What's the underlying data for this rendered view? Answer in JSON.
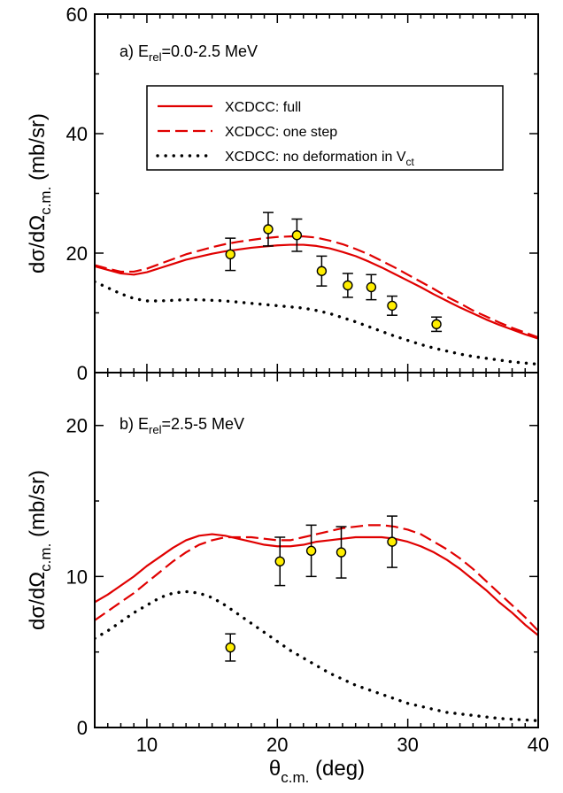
{
  "chart_data": {
    "type": "line",
    "xlabel_main": "θ",
    "xlabel_sub": "c.m.",
    "xlabel_unit": "(deg)",
    "xlim": [
      6,
      40
    ],
    "x_ticks": [
      10,
      20,
      30,
      40
    ],
    "legend": {
      "placement": "top-right of panel a",
      "entries": [
        {
          "label": "XCDCC: full",
          "style": "solid",
          "color": "#e00000"
        },
        {
          "label": "XCDCC: one step",
          "style": "dashed",
          "color": "#e00000"
        },
        {
          "label_main": "XCDCC: no deformation in V",
          "label_sub": "ct",
          "style": "dotted",
          "color": "#000000"
        }
      ]
    },
    "panels": [
      {
        "id": "a",
        "label_prefix": "a) E",
        "label_sub": "rel",
        "label_suffix": "=0.0-2.5 MeV",
        "ylabel_main": "dσ/dΩ",
        "ylabel_sub": "c.m.",
        "ylabel_unit": "(mb/sr)",
        "ylim": [
          0,
          60
        ],
        "y_ticks": [
          0,
          20,
          40,
          60
        ],
        "series": [
          {
            "key": "full",
            "style": "solid",
            "color": "#e00000",
            "x": [
              6,
              7,
              8,
              9,
              10,
              11,
              12,
              13,
              14,
              15,
              16,
              17,
              18,
              19,
              20,
              21,
              22,
              23,
              24,
              25,
              26,
              27,
              28,
              29,
              30,
              31,
              32,
              33,
              34,
              35,
              36,
              37,
              38,
              39,
              40
            ],
            "y": [
              17.8,
              17.2,
              16.6,
              16.4,
              16.8,
              17.5,
              18.2,
              18.9,
              19.4,
              19.9,
              20.3,
              20.6,
              20.9,
              21.1,
              21.3,
              21.4,
              21.4,
              21.2,
              20.8,
              20.2,
              19.5,
              18.6,
              17.6,
              16.5,
              15.4,
              14.3,
              13.1,
              12.0,
              10.9,
              9.9,
              8.9,
              8.0,
              7.2,
              6.4,
              5.7
            ]
          },
          {
            "key": "one_step",
            "style": "dashed",
            "color": "#e00000",
            "x": [
              6,
              7,
              8,
              9,
              10,
              11,
              12,
              13,
              14,
              15,
              16,
              17,
              18,
              19,
              20,
              21,
              22,
              23,
              24,
              25,
              26,
              27,
              28,
              29,
              30,
              31,
              32,
              33,
              34,
              35,
              36,
              37,
              38,
              39,
              40
            ],
            "y": [
              18.0,
              17.4,
              16.9,
              16.9,
              17.4,
              18.2,
              19.0,
              19.8,
              20.4,
              21.0,
              21.5,
              21.9,
              22.2,
              22.5,
              22.7,
              22.8,
              22.8,
              22.6,
              22.1,
              21.5,
              20.7,
              19.8,
              18.7,
              17.6,
              16.4,
              15.2,
              14.0,
              12.7,
              11.6,
              10.4,
              9.4,
              8.4,
              7.5,
              6.7,
              5.9
            ]
          },
          {
            "key": "no_def",
            "style": "dotted",
            "color": "#000000",
            "x": [
              6,
              7,
              8,
              9,
              10,
              11,
              12,
              13,
              14,
              15,
              16,
              17,
              18,
              19,
              20,
              21,
              22,
              23,
              24,
              25,
              26,
              27,
              28,
              29,
              30,
              31,
              32,
              33,
              34,
              35,
              36,
              37,
              38,
              39,
              40
            ],
            "y": [
              15.2,
              14.2,
              13.2,
              12.4,
              12.0,
              12.0,
              12.1,
              12.2,
              12.2,
              12.1,
              12.0,
              11.8,
              11.6,
              11.4,
              11.2,
              11.0,
              10.8,
              10.4,
              9.9,
              9.2,
              8.5,
              7.7,
              6.9,
              6.1,
              5.4,
              4.7,
              4.1,
              3.6,
              3.1,
              2.7,
              2.4,
              2.1,
              1.8,
              1.6,
              1.4
            ]
          }
        ],
        "points": {
          "x": [
            16.4,
            19.3,
            21.5,
            23.4,
            25.4,
            27.2,
            28.8,
            32.2
          ],
          "y": [
            19.8,
            24.0,
            23.0,
            17.0,
            14.6,
            14.3,
            11.2,
            8.1
          ],
          "yerr": [
            2.7,
            2.8,
            2.7,
            2.5,
            2.0,
            2.1,
            1.6,
            1.2
          ]
        }
      },
      {
        "id": "b",
        "label_prefix": "b) E",
        "label_sub": "rel",
        "label_suffix": "=2.5-5 MeV",
        "ylabel_main": "dσ/dΩ",
        "ylabel_sub": "c.m.",
        "ylabel_unit": "(mb/sr)",
        "ylim": [
          0,
          23.5
        ],
        "y_ticks": [
          0,
          10,
          20
        ],
        "series": [
          {
            "key": "full",
            "style": "solid",
            "color": "#e00000",
            "x": [
              6,
              7,
              8,
              9,
              10,
              11,
              12,
              13,
              14,
              15,
              16,
              17,
              18,
              19,
              20,
              21,
              22,
              23,
              24,
              25,
              26,
              27,
              28,
              29,
              30,
              31,
              32,
              33,
              34,
              35,
              36,
              37,
              38,
              39,
              40
            ],
            "y": [
              8.3,
              8.8,
              9.4,
              10.0,
              10.7,
              11.3,
              11.9,
              12.4,
              12.7,
              12.8,
              12.7,
              12.5,
              12.3,
              12.1,
              12.0,
              12.0,
              12.1,
              12.3,
              12.4,
              12.5,
              12.6,
              12.6,
              12.6,
              12.5,
              12.3,
              12.0,
              11.6,
              11.1,
              10.5,
              9.8,
              9.1,
              8.3,
              7.6,
              6.8,
              6.1
            ]
          },
          {
            "key": "one_step",
            "style": "dashed",
            "color": "#e00000",
            "x": [
              6,
              7,
              8,
              9,
              10,
              11,
              12,
              13,
              14,
              15,
              16,
              17,
              18,
              19,
              20,
              21,
              22,
              23,
              24,
              25,
              26,
              27,
              28,
              29,
              30,
              31,
              32,
              33,
              34,
              35,
              36,
              37,
              38,
              39,
              40
            ],
            "y": [
              7.1,
              7.7,
              8.3,
              8.9,
              9.6,
              10.3,
              11.0,
              11.6,
              12.1,
              12.4,
              12.6,
              12.6,
              12.6,
              12.5,
              12.4,
              12.4,
              12.6,
              12.8,
              13.0,
              13.2,
              13.3,
              13.4,
              13.4,
              13.3,
              13.1,
              12.8,
              12.3,
              11.8,
              11.2,
              10.5,
              9.7,
              8.9,
              8.1,
              7.3,
              6.4
            ]
          },
          {
            "key": "no_def",
            "style": "dotted",
            "color": "#000000",
            "x": [
              6,
              7,
              8,
              9,
              10,
              11,
              12,
              13,
              14,
              15,
              16,
              17,
              18,
              19,
              20,
              21,
              22,
              23,
              24,
              25,
              26,
              27,
              28,
              29,
              30,
              31,
              32,
              33,
              34,
              35,
              36,
              37,
              38,
              39,
              40
            ],
            "y": [
              5.9,
              6.4,
              7.0,
              7.6,
              8.1,
              8.6,
              8.9,
              9.0,
              8.9,
              8.6,
              8.1,
              7.5,
              6.9,
              6.3,
              5.7,
              5.1,
              4.6,
              4.1,
              3.6,
              3.2,
              2.8,
              2.5,
              2.2,
              1.9,
              1.6,
              1.4,
              1.2,
              1.0,
              0.9,
              0.8,
              0.7,
              0.6,
              0.55,
              0.5,
              0.45
            ]
          }
        ],
        "points": {
          "x": [
            16.4,
            20.2,
            22.6,
            24.9,
            28.8
          ],
          "y": [
            5.3,
            11.0,
            11.7,
            11.6,
            12.3
          ],
          "yerr": [
            0.9,
            1.6,
            1.7,
            1.7,
            1.7
          ]
        }
      }
    ]
  }
}
